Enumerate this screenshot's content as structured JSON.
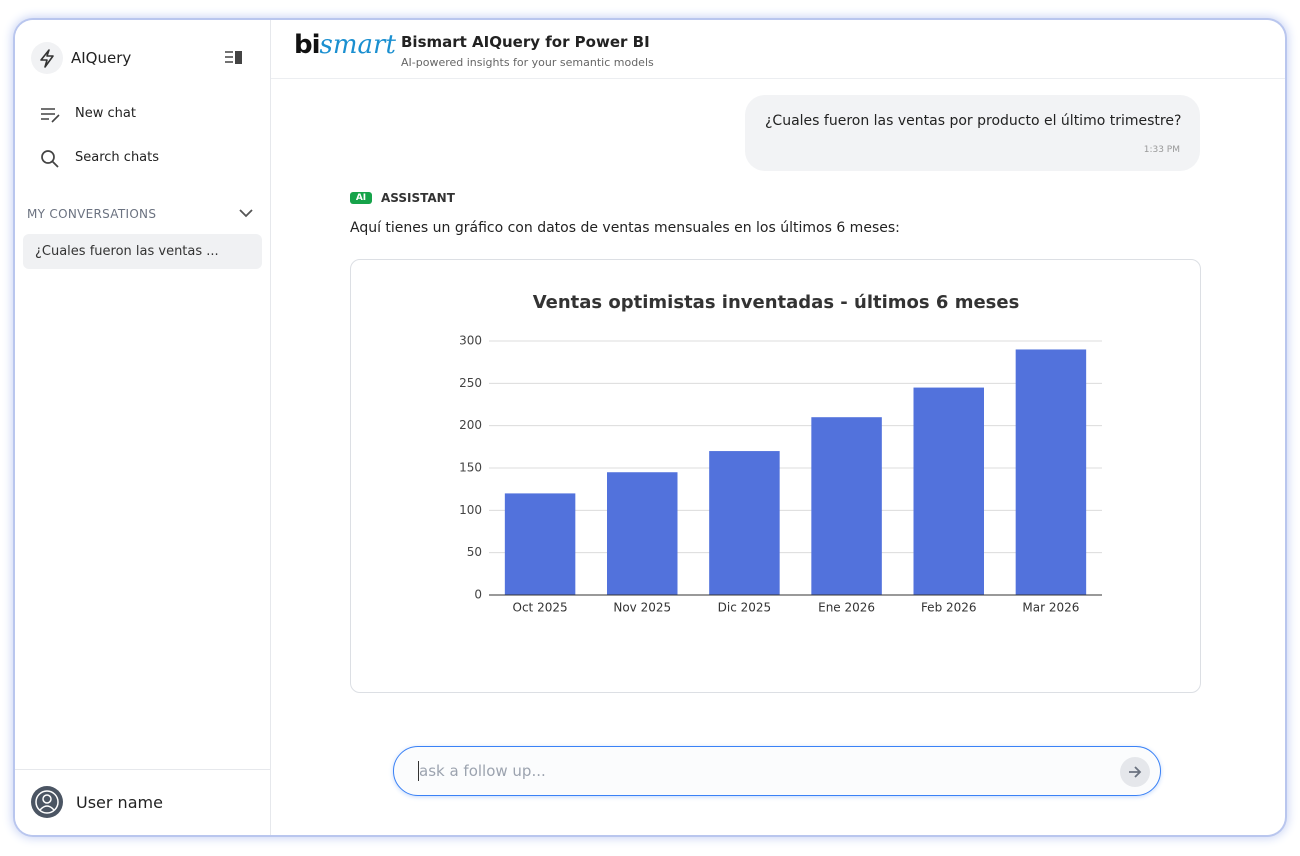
{
  "sidebar": {
    "app_name": "AIQuery",
    "new_chat": "New chat",
    "search_chats": "Search chats",
    "section_title": "MY CONVERSATIONS",
    "conversations": [
      "¿Cuales fueron las ventas ..."
    ],
    "user_name": "User name"
  },
  "header": {
    "logo": {
      "prefix": "bi",
      "suffix": "smart"
    },
    "title": "Bismart AIQuery for Power BI",
    "subtitle": "AI-powered insights for your semantic models"
  },
  "messages": [
    {
      "role": "user",
      "text": "¿Cuales fueron las ventas por producto el último trimestre?",
      "time": "1:33 PM"
    },
    {
      "role_badge": "AI",
      "role_label": "ASSISTANT",
      "text": "Aquí tienes un gráfico con datos de ventas mensuales en los últimos 6 meses:"
    }
  ],
  "chart_data": {
    "type": "bar",
    "title": "Ventas optimistas inventadas - últimos 6 meses",
    "categories": [
      "Oct 2025",
      "Nov 2025",
      "Dic 2025",
      "Ene 2026",
      "Feb 2026",
      "Mar 2026"
    ],
    "values": [
      120,
      145,
      170,
      210,
      245,
      290
    ],
    "color": "#5272dc",
    "ylim": [
      0,
      300
    ],
    "yticks": [
      0,
      50,
      100,
      150,
      200,
      250,
      300
    ],
    "grid": true
  },
  "input": {
    "placeholder": "ask a follow up..."
  }
}
